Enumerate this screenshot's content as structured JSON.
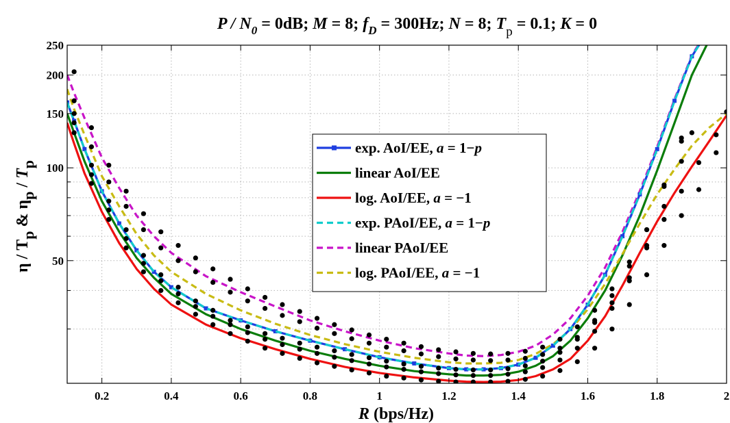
{
  "chart_data": {
    "type": "line",
    "title": {
      "p_over_n0": "P / N",
      "p_over_n0_sub": "0",
      "p_over_n0_value": " = 0dB; ",
      "m": "M",
      "m_value": " = 8; ",
      "fd": "f",
      "fd_sub": "D",
      "fd_value": " = 300Hz; ",
      "n": "N",
      "n_value": " = 8; ",
      "tp": "T",
      "tp_sub": "p",
      "tp_value": " = 0.1; ",
      "k": "K",
      "k_value": " = 0"
    },
    "xlabel": {
      "var": "R",
      "unit": " (bps/Hz)"
    },
    "ylabel": {
      "eta": "η / T",
      "sub1": "p",
      "amp": " & η",
      "sub2": "p",
      "slash": " / ",
      "tp": "T",
      "sub3": "p"
    },
    "xlim": [
      0.1,
      2.0
    ],
    "ylim": [
      20,
      250
    ],
    "yscale": "log",
    "grid": true,
    "legend_position": "center",
    "x_ticks": [
      "0.2",
      "0.4",
      "0.6",
      "0.8",
      "1",
      "1.2",
      "1.4",
      "1.6",
      "1.8",
      "2"
    ],
    "x_tick_values": [
      0.2,
      0.4,
      0.6,
      0.8,
      1.0,
      1.2,
      1.4,
      1.6,
      1.8,
      2.0
    ],
    "y_ticks": [
      "50",
      "100",
      "150",
      "200",
      "250"
    ],
    "y_tick_values": [
      50,
      100,
      150,
      200,
      250
    ],
    "y_minor_grid": [
      30,
      40,
      60,
      70,
      80,
      90
    ],
    "series": [
      {
        "legend": {
          "pre": "exp. AoI/EE, ",
          "a": "a",
          "mid": " = 1−",
          "p": "p"
        },
        "color": "#1f3fe0",
        "style": "solid",
        "marker": "square",
        "x": [
          0.1,
          0.12,
          0.15,
          0.2,
          0.25,
          0.3,
          0.35,
          0.4,
          0.5,
          0.6,
          0.7,
          0.8,
          0.9,
          1.0,
          1.1,
          1.2,
          1.25,
          1.3,
          1.35,
          1.4,
          1.45,
          1.5,
          1.55,
          1.6,
          1.65,
          1.7,
          1.75,
          1.8,
          1.85,
          1.9,
          1.93
        ],
        "y": [
          163,
          142,
          115,
          84,
          66,
          54,
          46,
          41,
          35,
          32,
          29.5,
          27.5,
          25.8,
          24.3,
          23.2,
          22.4,
          22.2,
          22.2,
          22.4,
          23,
          24.2,
          26.5,
          30,
          36,
          45,
          60,
          82,
          115,
          165,
          230,
          260
        ],
        "dots_x": [
          0.12,
          0.17,
          0.22,
          0.27,
          0.32,
          0.37,
          0.42,
          0.47,
          0.52,
          0.57,
          0.62,
          0.67,
          0.72,
          0.77,
          0.82,
          0.87,
          0.92,
          0.97,
          1.02,
          1.07,
          1.12,
          1.17,
          1.22,
          1.27,
          1.32,
          1.37,
          1.42,
          1.47,
          1.52,
          1.57,
          1.62,
          1.67,
          1.72,
          1.77,
          1.82,
          1.87
        ],
        "dots_y": [
          150,
          102,
          78,
          63,
          52,
          45,
          41,
          37,
          34.5,
          32,
          30.5,
          29,
          28,
          27,
          26.2,
          25.5,
          24.8,
          24.2,
          23.6,
          23.1,
          22.7,
          22.4,
          22.2,
          22.1,
          22.1,
          22.3,
          22.8,
          23.6,
          25.2,
          27.8,
          32,
          38.5,
          48,
          63,
          87,
          122
        ]
      },
      {
        "legend": {
          "pre": "linear AoI/EE",
          "a": "",
          "mid": "",
          "p": ""
        },
        "color": "#0b7d0b",
        "style": "solid",
        "marker": "none",
        "x": [
          0.1,
          0.12,
          0.15,
          0.2,
          0.25,
          0.3,
          0.35,
          0.4,
          0.5,
          0.6,
          0.7,
          0.8,
          0.9,
          1.0,
          1.1,
          1.2,
          1.25,
          1.3,
          1.35,
          1.4,
          1.45,
          1.5,
          1.55,
          1.6,
          1.65,
          1.7,
          1.75,
          1.8,
          1.85,
          1.9,
          1.95
        ],
        "y": [
          150,
          130,
          105,
          78,
          62,
          51,
          44,
          39,
          33.5,
          30,
          27.5,
          25.5,
          24,
          22.8,
          21.9,
          21.4,
          21.2,
          21.2,
          21.3,
          21.8,
          22.8,
          24.5,
          27.5,
          32.5,
          40,
          52,
          70,
          98,
          140,
          200,
          260
        ],
        "dots_x": [
          0.12,
          0.17,
          0.22,
          0.27,
          0.32,
          0.37,
          0.42,
          0.47,
          0.52,
          0.57,
          0.62,
          0.67,
          0.72,
          0.77,
          0.82,
          0.87,
          0.92,
          0.97,
          1.02,
          1.07,
          1.12,
          1.17,
          1.22,
          1.27,
          1.32,
          1.37,
          1.42,
          1.47,
          1.52,
          1.57,
          1.62,
          1.67,
          1.72,
          1.77,
          1.82,
          1.87,
          1.9
        ],
        "dots_y": [
          140,
          95,
          73,
          59,
          49,
          43,
          39,
          35.5,
          33,
          31,
          29.2,
          27.8,
          26.7,
          25.8,
          25,
          24.3,
          23.7,
          23.1,
          22.6,
          22.2,
          21.8,
          21.5,
          21.3,
          21.2,
          21.2,
          21.4,
          21.8,
          22.5,
          23.8,
          26,
          29.5,
          35,
          43,
          56,
          75,
          105,
          130
        ]
      },
      {
        "legend": {
          "pre": "log. AoI/EE, ",
          "a": "a",
          "mid": " = −1",
          "p": ""
        },
        "color": "#ee1111",
        "style": "solid",
        "marker": "none",
        "x": [
          0.1,
          0.12,
          0.15,
          0.2,
          0.25,
          0.3,
          0.35,
          0.4,
          0.5,
          0.6,
          0.7,
          0.8,
          0.9,
          1.0,
          1.1,
          1.2,
          1.25,
          1.3,
          1.35,
          1.4,
          1.45,
          1.5,
          1.55,
          1.6,
          1.65,
          1.7,
          1.75,
          1.8,
          1.85,
          1.9,
          1.95,
          2.0
        ],
        "y": [
          140,
          120,
          96,
          72,
          57,
          47,
          40.5,
          36,
          31,
          28,
          25.8,
          24,
          22.6,
          21.6,
          20.9,
          20.4,
          20.25,
          20.2,
          20.25,
          20.5,
          21.1,
          22.2,
          24,
          27.5,
          33,
          41.5,
          53,
          67,
          83,
          101,
          122,
          148
        ],
        "dots_x": [
          0.12,
          0.17,
          0.22,
          0.27,
          0.32,
          0.37,
          0.42,
          0.47,
          0.52,
          0.57,
          0.62,
          0.67,
          0.72,
          0.77,
          0.82,
          0.87,
          0.92,
          0.97,
          1.02,
          1.07,
          1.12,
          1.17,
          1.22,
          1.27,
          1.32,
          1.37,
          1.42,
          1.47,
          1.52,
          1.57,
          1.62,
          1.67,
          1.72,
          1.77,
          1.82,
          1.87,
          1.92,
          1.97,
          2.0
        ],
        "dots_y": [
          130,
          89,
          68,
          55,
          46,
          40,
          36.5,
          33.5,
          31,
          29,
          27.4,
          26,
          25,
          24.1,
          23.3,
          22.7,
          22.1,
          21.6,
          21.1,
          20.8,
          20.5,
          20.3,
          20.2,
          20.2,
          20.2,
          20.3,
          20.6,
          21.1,
          22,
          23.5,
          26,
          30,
          36,
          45,
          56,
          70,
          85,
          112,
          152
        ]
      },
      {
        "legend": {
          "pre": "exp. PAoI/EE, ",
          "a": "a",
          "mid": " = 1−",
          "p": "p"
        },
        "color": "#11cccc",
        "style": "dashed",
        "marker": "none",
        "x": [
          0.1,
          0.12,
          0.15,
          0.2,
          0.25,
          0.3,
          0.35,
          0.4,
          0.5,
          0.6,
          0.7,
          0.8,
          0.9,
          1.0,
          1.1,
          1.2,
          1.25,
          1.3,
          1.35,
          1.4,
          1.45,
          1.5,
          1.55,
          1.6,
          1.65,
          1.7,
          1.75,
          1.8,
          1.85,
          1.9,
          1.93
        ],
        "y": [
          163,
          142,
          115,
          84,
          66,
          54,
          46,
          41,
          35,
          32,
          29.5,
          27.5,
          25.8,
          24.3,
          23.2,
          22.4,
          22.2,
          22.2,
          22.4,
          23,
          24.2,
          26.5,
          30,
          36,
          45,
          60,
          82,
          115,
          165,
          230,
          260
        ],
        "dots_x": [],
        "dots_y": []
      },
      {
        "legend": {
          "pre": "linear PAoI/EE",
          "a": "",
          "mid": "",
          "p": ""
        },
        "color": "#c815c8",
        "style": "dashed",
        "marker": "none",
        "x": [
          0.1,
          0.12,
          0.15,
          0.2,
          0.25,
          0.3,
          0.35,
          0.4,
          0.5,
          0.6,
          0.7,
          0.8,
          0.9,
          1.0,
          1.1,
          1.2,
          1.25,
          1.3,
          1.35,
          1.4,
          1.45,
          1.5,
          1.55,
          1.6,
          1.65,
          1.7,
          1.75,
          1.8,
          1.85,
          1.9,
          1.93
        ],
        "y": [
          200,
          175,
          145,
          108,
          86,
          70,
          60,
          53,
          44.5,
          39.5,
          35.5,
          32,
          29.5,
          27.5,
          26,
          25,
          24.6,
          24.5,
          24.7,
          25.3,
          26.5,
          28.8,
          32.5,
          38.5,
          47.5,
          62,
          84,
          117,
          167,
          232,
          262
        ],
        "dots_x": [
          0.12,
          0.17,
          0.22,
          0.27,
          0.32,
          0.37,
          0.42,
          0.47,
          0.52,
          0.57,
          0.62,
          0.67,
          0.72,
          0.77,
          0.82,
          0.87,
          0.92,
          0.97,
          1.02,
          1.07,
          1.12,
          1.17,
          1.22,
          1.27,
          1.32,
          1.37,
          1.42,
          1.47,
          1.52,
          1.57,
          1.62,
          1.67,
          1.72,
          1.77,
          1.82,
          1.87
        ],
        "dots_y": [
          205,
          135,
          102,
          84,
          71,
          62,
          56,
          51,
          47,
          43.5,
          40.5,
          38,
          36,
          34.2,
          32.5,
          31,
          29.8,
          28.7,
          27.8,
          27,
          26.3,
          25.7,
          25.3,
          25,
          24.9,
          25,
          25.4,
          26.2,
          27.8,
          30.5,
          34.5,
          40.5,
          49.5,
          63,
          88,
          125
        ]
      },
      {
        "legend": {
          "pre": "log. PAoI/EE, ",
          "a": "a",
          "mid": " = −1",
          "p": ""
        },
        "color": "#c8bb14",
        "style": "dashed",
        "marker": "none",
        "x": [
          0.1,
          0.12,
          0.15,
          0.2,
          0.25,
          0.3,
          0.35,
          0.4,
          0.5,
          0.6,
          0.7,
          0.8,
          0.9,
          1.0,
          1.1,
          1.2,
          1.25,
          1.3,
          1.35,
          1.4,
          1.45,
          1.5,
          1.55,
          1.6,
          1.65,
          1.7,
          1.75,
          1.8,
          1.85,
          1.9,
          1.95,
          2.0
        ],
        "y": [
          180,
          155,
          128,
          94,
          75,
          61,
          52,
          46,
          39,
          34.5,
          31.2,
          28.7,
          26.8,
          25.3,
          24.2,
          23.4,
          23.2,
          23.2,
          23.3,
          23.8,
          24.9,
          26.8,
          29.8,
          34.8,
          42,
          52.5,
          66,
          82,
          99,
          118,
          135,
          150
        ],
        "dots_x": [
          0.12,
          0.17,
          0.22,
          0.27,
          0.32,
          0.37,
          0.42,
          0.47,
          0.52,
          0.57,
          0.62,
          0.67,
          0.72,
          0.77,
          0.82,
          0.87,
          0.92,
          0.97,
          1.02,
          1.07,
          1.12,
          1.17,
          1.22,
          1.27,
          1.32,
          1.37,
          1.42,
          1.47,
          1.52,
          1.57,
          1.62,
          1.67,
          1.72,
          1.77,
          1.82,
          1.87,
          1.92,
          1.97
        ],
        "dots_y": [
          165,
          117,
          90,
          75,
          63,
          55,
          50,
          46,
          42.5,
          39.5,
          37,
          35,
          33.2,
          31.7,
          30.2,
          29,
          27.9,
          27,
          26.2,
          25.5,
          24.9,
          24.4,
          24,
          23.8,
          23.7,
          23.8,
          24.1,
          24.8,
          26,
          28.2,
          31.5,
          36.5,
          44,
          55,
          68,
          84,
          104,
          128
        ]
      }
    ]
  }
}
